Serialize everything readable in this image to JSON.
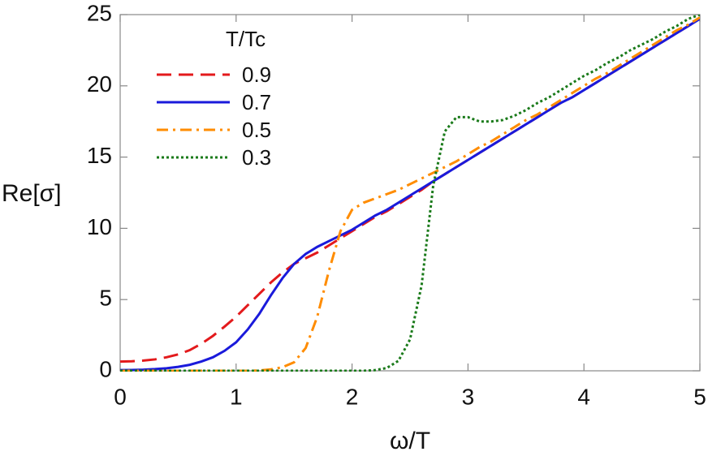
{
  "chart_data": {
    "type": "line",
    "x_label": "ω/T",
    "y_label": "Re[σ]",
    "legend_title": "T/Tc",
    "legend": "upper left",
    "xlim": [
      0,
      5
    ],
    "ylim": [
      0,
      25
    ],
    "xticks": [
      0,
      1,
      2,
      3,
      4,
      5
    ],
    "yticks": [
      0,
      5,
      10,
      15,
      20,
      25
    ],
    "x": [
      0,
      0.1,
      0.2,
      0.3,
      0.4,
      0.5,
      0.6,
      0.7,
      0.8,
      0.9,
      1.0,
      1.1,
      1.2,
      1.3,
      1.4,
      1.5,
      1.6,
      1.7,
      1.8,
      1.9,
      2.0,
      2.1,
      2.2,
      2.3,
      2.4,
      2.5,
      2.6,
      2.7,
      2.8,
      2.9,
      3.0,
      3.1,
      3.2,
      3.3,
      3.4,
      3.5,
      3.6,
      3.7,
      3.8,
      3.9,
      4.0,
      4.1,
      4.2,
      4.3,
      4.4,
      4.5,
      4.6,
      4.7,
      4.8,
      4.9,
      5.0
    ],
    "series": [
      {
        "name": "0.9",
        "color": "#e31a1c",
        "dash": "dashed",
        "values": [
          0.65,
          0.67,
          0.72,
          0.8,
          0.95,
          1.15,
          1.45,
          1.9,
          2.45,
          3.1,
          3.8,
          4.6,
          5.4,
          6.2,
          6.9,
          7.5,
          7.9,
          8.3,
          8.8,
          9.3,
          9.8,
          10.3,
          10.8,
          11.2,
          11.7,
          12.2,
          12.7,
          13.3,
          13.8,
          14.3,
          14.8,
          15.3,
          15.8,
          16.3,
          16.8,
          17.3,
          17.8,
          18.3,
          18.8,
          19.2,
          19.7,
          20.2,
          20.7,
          21.2,
          21.7,
          22.2,
          22.7,
          23.2,
          23.7,
          24.2,
          24.7
        ]
      },
      {
        "name": "0.7",
        "color": "#1a1adb",
        "dash": "solid",
        "values": [
          0.05,
          0.06,
          0.08,
          0.12,
          0.18,
          0.28,
          0.42,
          0.65,
          0.95,
          1.4,
          2.0,
          2.9,
          4.0,
          5.3,
          6.5,
          7.5,
          8.2,
          8.7,
          9.1,
          9.5,
          9.9,
          10.4,
          10.9,
          11.3,
          11.8,
          12.3,
          12.8,
          13.3,
          13.8,
          14.3,
          14.8,
          15.3,
          15.8,
          16.3,
          16.8,
          17.3,
          17.8,
          18.3,
          18.8,
          19.2,
          19.7,
          20.2,
          20.7,
          21.2,
          21.7,
          22.2,
          22.7,
          23.2,
          23.7,
          24.2,
          24.7
        ]
      },
      {
        "name": "0.5",
        "color": "#ff8c00",
        "dash": "dashdot",
        "values": [
          0,
          0,
          0,
          0,
          0,
          0,
          0,
          0,
          0,
          0,
          0,
          0,
          0.02,
          0.1,
          0.25,
          0.6,
          1.6,
          3.8,
          7.0,
          9.8,
          11.3,
          11.8,
          12.1,
          12.4,
          12.7,
          13.1,
          13.5,
          13.9,
          14.3,
          14.7,
          15.2,
          15.7,
          16.1,
          16.6,
          17.1,
          17.6,
          18.0,
          18.5,
          19.0,
          19.5,
          20.0,
          20.5,
          20.9,
          21.4,
          21.9,
          22.4,
          22.9,
          23.4,
          23.9,
          24.3,
          24.8
        ]
      },
      {
        "name": "0.3",
        "color": "#1a7a1a",
        "dash": "dotted",
        "values": [
          0,
          0,
          0,
          0,
          0,
          0,
          0,
          0,
          0,
          0,
          0,
          0,
          0,
          0,
          0,
          0,
          0,
          0,
          0,
          0,
          0,
          0,
          0.05,
          0.2,
          0.7,
          2.2,
          6.0,
          13.0,
          16.8,
          17.8,
          17.8,
          17.5,
          17.5,
          17.6,
          17.9,
          18.3,
          18.8,
          19.2,
          19.7,
          20.2,
          20.7,
          21.1,
          21.6,
          22.0,
          22.5,
          22.9,
          23.3,
          23.8,
          24.2,
          24.7,
          25.0
        ]
      }
    ]
  }
}
